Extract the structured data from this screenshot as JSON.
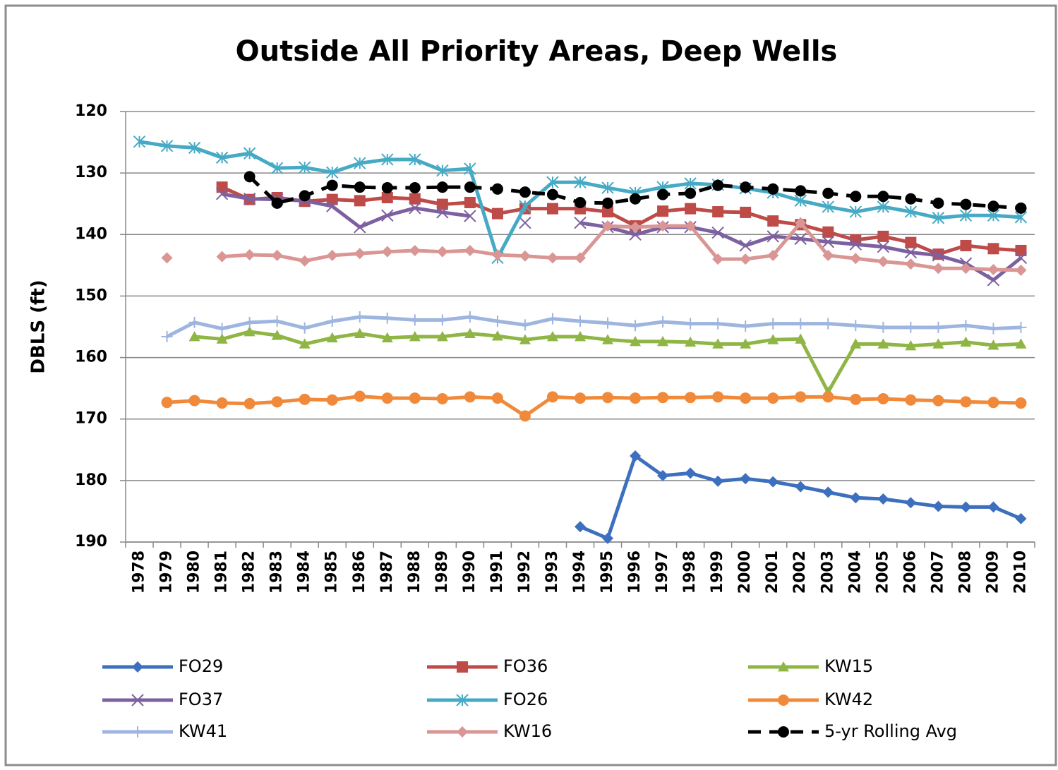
{
  "chart_data": {
    "type": "line",
    "title": "Outside All Priority Areas, Deep Wells",
    "y_label": "DBLS (ft)",
    "categories": [
      "1978",
      "1979",
      "1980",
      "1981",
      "1982",
      "1983",
      "1984",
      "1985",
      "1986",
      "1987",
      "1988",
      "1989",
      "1990",
      "1991",
      "1992",
      "1993",
      "1994",
      "1995",
      "1996",
      "1997",
      "1998",
      "1999",
      "2000",
      "2001",
      "2002",
      "2003",
      "2004",
      "2005",
      "2006",
      "2007",
      "2008",
      "2009",
      "2010"
    ],
    "ylim": [
      190,
      120
    ],
    "yticks": [
      120,
      130,
      140,
      150,
      160,
      170,
      180,
      190
    ],
    "grid": true,
    "legend": "bottom",
    "series": [
      {
        "name": "FO29",
        "color": "#3d6fbf",
        "marker": "diamond",
        "values": [
          null,
          null,
          null,
          null,
          null,
          null,
          null,
          null,
          null,
          null,
          null,
          null,
          null,
          null,
          null,
          null,
          187.5,
          189.4,
          176.0,
          179.2,
          178.8,
          180.1,
          179.7,
          180.2,
          181.0,
          181.9,
          182.8,
          183.0,
          183.6,
          184.2,
          184.3,
          184.3,
          186.2
        ]
      },
      {
        "name": "FO36",
        "color": "#be4b48",
        "marker": "square",
        "values": [
          null,
          null,
          null,
          132.3,
          134.3,
          134.0,
          134.6,
          134.3,
          134.5,
          134.0,
          134.2,
          135.1,
          134.8,
          136.6,
          135.8,
          135.8,
          135.8,
          136.3,
          138.6,
          136.2,
          135.8,
          136.3,
          136.4,
          137.8,
          138.4,
          139.6,
          140.9,
          140.3,
          141.3,
          143.2,
          141.8,
          142.3,
          142.6
        ]
      },
      {
        "name": "KW15",
        "color": "#8fb545",
        "marker": "triangle",
        "values": [
          null,
          null,
          156.6,
          157.0,
          155.8,
          156.4,
          157.8,
          156.8,
          156.1,
          156.8,
          156.6,
          156.6,
          156.1,
          156.5,
          157.1,
          156.6,
          156.6,
          157.1,
          157.4,
          157.4,
          157.5,
          157.8,
          157.8,
          157.1,
          157.0,
          165.6,
          157.8,
          157.8,
          158.1,
          157.8,
          157.5,
          158.0,
          157.8
        ]
      },
      {
        "name": "FO37",
        "color": "#7d60a0",
        "marker": "x",
        "values": [
          null,
          null,
          null,
          133.4,
          134.2,
          134.3,
          134.5,
          135.4,
          138.8,
          136.9,
          135.7,
          136.4,
          137.0,
          null,
          138.1,
          null,
          138.1,
          138.8,
          140.0,
          138.8,
          138.8,
          139.7,
          141.8,
          140.3,
          140.7,
          141.2,
          141.6,
          142.0,
          142.9,
          143.4,
          144.7,
          147.4,
          143.8
        ]
      },
      {
        "name": "FO26",
        "color": "#46aac5",
        "marker": "star",
        "values": [
          124.9,
          125.6,
          125.9,
          127.5,
          126.8,
          129.2,
          129.1,
          129.9,
          128.4,
          127.8,
          127.8,
          129.6,
          129.3,
          143.8,
          135.4,
          131.5,
          131.5,
          132.4,
          133.2,
          132.3,
          131.7,
          131.9,
          132.5,
          133.2,
          134.5,
          135.5,
          136.3,
          135.5,
          136.3,
          137.3,
          136.9,
          136.9,
          137.2
        ]
      },
      {
        "name": "KW42",
        "color": "#f08a3a",
        "marker": "circle",
        "values": [
          null,
          167.3,
          167.0,
          167.4,
          167.5,
          167.2,
          166.8,
          166.9,
          166.3,
          166.6,
          166.6,
          166.7,
          166.4,
          166.6,
          169.5,
          166.4,
          166.6,
          166.5,
          166.6,
          166.5,
          166.5,
          166.4,
          166.6,
          166.6,
          166.4,
          166.4,
          166.8,
          166.7,
          166.9,
          167.0,
          167.2,
          167.3,
          167.4
        ]
      },
      {
        "name": "KW41",
        "color": "#9db5df",
        "marker": "plus",
        "values": [
          null,
          156.6,
          154.3,
          155.3,
          154.3,
          154.1,
          155.2,
          154.1,
          153.4,
          153.6,
          153.9,
          153.9,
          153.4,
          154.1,
          154.7,
          153.7,
          154.1,
          154.4,
          154.8,
          154.2,
          154.5,
          154.5,
          154.9,
          154.5,
          154.5,
          154.5,
          154.8,
          155.1,
          155.1,
          155.1,
          154.8,
          155.3,
          155.1
        ]
      },
      {
        "name": "KW16",
        "color": "#d99694",
        "marker": "diamond",
        "values": [
          null,
          143.8,
          null,
          143.6,
          143.3,
          143.4,
          144.3,
          143.4,
          143.1,
          142.8,
          142.6,
          142.8,
          142.6,
          143.3,
          143.5,
          143.8,
          143.8,
          138.6,
          138.8,
          138.6,
          138.6,
          144.0,
          144.0,
          143.4,
          138.1,
          143.4,
          143.9,
          144.4,
          144.8,
          145.5,
          145.5,
          145.7,
          145.8
        ]
      },
      {
        "name": "5-yr Rolling Avg",
        "color": "#000000",
        "marker": "circle",
        "dashed": true,
        "values": [
          null,
          null,
          null,
          null,
          130.6,
          134.9,
          133.7,
          132.0,
          132.3,
          132.4,
          132.4,
          132.3,
          132.3,
          132.6,
          133.1,
          133.5,
          134.8,
          134.9,
          134.2,
          133.5,
          133.3,
          132.0,
          132.3,
          132.6,
          132.9,
          133.3,
          133.8,
          133.8,
          134.2,
          134.9,
          135.1,
          135.4,
          135.7
        ]
      }
    ]
  }
}
